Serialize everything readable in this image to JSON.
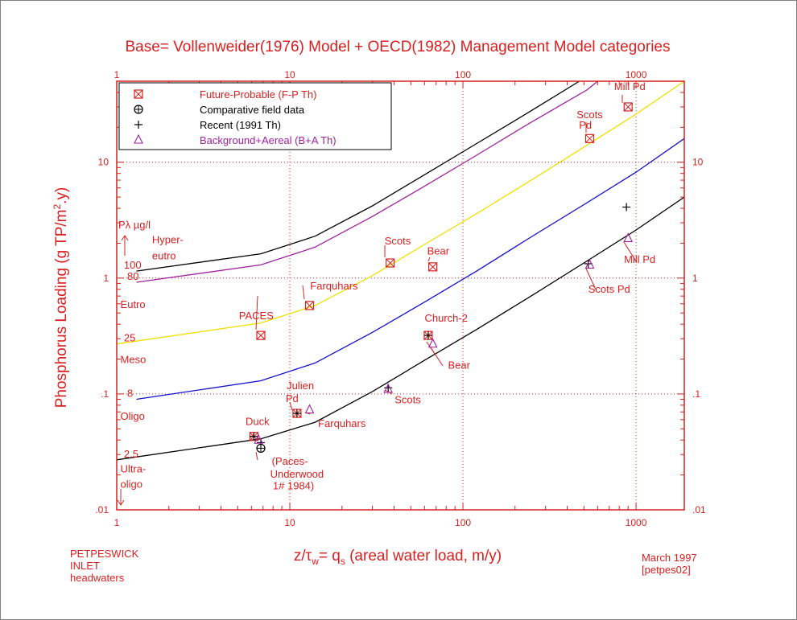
{
  "chart_data": {
    "type": "scatter",
    "title": "Base= Vollenweider(1976) Model + OECD(1982) Management Model categories",
    "xlabel": "z/τw= qs (areal water load, m/y)",
    "xlabel_parts": {
      "a": "z/τ",
      "a_sub": "w",
      "b": "= q",
      "b_sub": "s",
      "c": " (areal water load, m/y)"
    },
    "ylabel": "Phosphorus Loading (g TP/m².y)",
    "ylabel_parts": {
      "a": "Phosphorus Loading (g TP/m",
      "sup": "2",
      "b": ".y)"
    },
    "xscale": "log",
    "yscale": "log",
    "xlim": [
      1,
      1900
    ],
    "ylim": [
      0.01,
      50
    ],
    "grid": true,
    "x_ticks": [
      {
        "v": 1,
        "label": "1"
      },
      {
        "v": 10,
        "label": "10"
      },
      {
        "v": 100,
        "label": "100"
      },
      {
        "v": 1000,
        "label": "1000"
      }
    ],
    "y_ticks": [
      {
        "v": 10,
        "label": "10"
      },
      {
        "v": 1,
        "label": "1"
      },
      {
        "v": 0.1,
        "label": ".1"
      },
      {
        "v": 0.01,
        "label": ".01"
      }
    ],
    "legend_position": "top-left",
    "legend": [
      {
        "marker": "boxed-x",
        "label": "Future-Probable (F-P Th)",
        "color": "#d82020"
      },
      {
        "marker": "circle-plus",
        "label": "Comparative field data",
        "color": "#000000"
      },
      {
        "marker": "plus",
        "label": "Recent (1991 Th)",
        "color": "#000000"
      },
      {
        "marker": "triangle",
        "label": "Background+Aereal (B+A Th)",
        "color": "#a020a0"
      }
    ],
    "curves": [
      {
        "name": "Hyper-eutro 100 µg/l",
        "color": "#000000",
        "x": [
          1.3,
          6.8,
          14,
          30,
          60,
          120,
          240,
          470
        ],
        "y": [
          1.15,
          1.62,
          2.3,
          4.2,
          7.8,
          14.5,
          27,
          50
        ]
      },
      {
        "name": "Hyper-eutro 80 µg/l",
        "color": "#a020a0",
        "x": [
          1.3,
          6.8,
          14,
          30,
          60,
          120,
          240,
          520,
          600
        ],
        "y": [
          0.92,
          1.3,
          1.85,
          3.4,
          6.2,
          11.5,
          21.5,
          42,
          50
        ]
      },
      {
        "name": "Eutro 25 µg/l",
        "color": "#f0e000",
        "x": [
          1,
          6.8,
          14,
          30,
          60,
          120,
          240,
          500,
          1000,
          1900
        ],
        "y": [
          0.27,
          0.41,
          0.58,
          1.05,
          1.95,
          3.6,
          6.8,
          13.5,
          26,
          50
        ]
      },
      {
        "name": "Meso 8 µg/l",
        "color": "#1010d0",
        "x": [
          1.3,
          6.8,
          14,
          30,
          60,
          120,
          240,
          500,
          1000,
          1900
        ],
        "y": [
          0.09,
          0.13,
          0.185,
          0.34,
          0.62,
          1.15,
          2.2,
          4.3,
          8.2,
          16
        ]
      },
      {
        "name": "Oligo 2.5 µg/l",
        "color": "#000000",
        "x": [
          1,
          6.8,
          14,
          30,
          60,
          120,
          240,
          500,
          1000,
          1900
        ],
        "y": [
          0.027,
          0.041,
          0.057,
          0.105,
          0.195,
          0.36,
          0.68,
          1.35,
          2.6,
          5.0
        ]
      }
    ],
    "zone_labels": [
      {
        "text": "Hyper-",
        "x": 1.6,
        "y": 2.0
      },
      {
        "text": "eutro",
        "x": 1.6,
        "y": 1.45
      },
      {
        "text": "Eutro",
        "x": 1.05,
        "y": 0.55
      },
      {
        "text": "Meso",
        "x": 1.05,
        "y": 0.185
      },
      {
        "text": "Oligo",
        "x": 1.05,
        "y": 0.06
      },
      {
        "text": "Ultra-",
        "x": 1.05,
        "y": 0.021
      },
      {
        "text": "oligo",
        "x": 1.05,
        "y": 0.0155
      }
    ],
    "concentration_labels": [
      {
        "text": "100",
        "x": 1.1,
        "y": 1.15
      },
      {
        "text": "80",
        "x": 1.15,
        "y": 0.92
      },
      {
        "text": "25",
        "x": 1.1,
        "y": 0.27
      },
      {
        "text": "8",
        "x": 1.15,
        "y": 0.09
      },
      {
        "text": "2.5",
        "x": 1.1,
        "y": 0.027
      }
    ],
    "p_label": {
      "a": "P",
      "b": "λ µg/l"
    },
    "series": [
      {
        "name": "Future-Probable (F-P Th)",
        "marker": "boxed-x",
        "color": "#d82020",
        "points": [
          {
            "x": 6.8,
            "y": 0.32
          },
          {
            "x": 13,
            "y": 0.58
          },
          {
            "x": 38,
            "y": 1.35
          },
          {
            "x": 67,
            "y": 1.25
          },
          {
            "x": 540,
            "y": 16
          },
          {
            "x": 900,
            "y": 30
          },
          {
            "x": 63,
            "y": 0.32
          },
          {
            "x": 11,
            "y": 0.068
          },
          {
            "x": 6.2,
            "y": 0.043
          }
        ]
      },
      {
        "name": "Comparative field data",
        "marker": "circle-plus",
        "color": "#000000",
        "points": [
          {
            "x": 6.8,
            "y": 0.034
          }
        ]
      },
      {
        "name": "Recent (1991 Th)",
        "marker": "plus",
        "color": "#000000",
        "points": [
          {
            "x": 880,
            "y": 4.1
          },
          {
            "x": 530,
            "y": 1.33
          },
          {
            "x": 63,
            "y": 0.32
          },
          {
            "x": 37,
            "y": 0.113
          },
          {
            "x": 11,
            "y": 0.068
          },
          {
            "x": 6.2,
            "y": 0.043
          },
          {
            "x": 6.8,
            "y": 0.038
          }
        ]
      },
      {
        "name": "Background+Aereal (B+A Th)",
        "marker": "triangle",
        "color": "#a020a0",
        "points": [
          {
            "x": 900,
            "y": 2.2
          },
          {
            "x": 540,
            "y": 1.3
          },
          {
            "x": 67,
            "y": 0.27
          },
          {
            "x": 37,
            "y": 0.11
          },
          {
            "x": 13,
            "y": 0.073
          },
          {
            "x": 6.6,
            "y": 0.04
          }
        ]
      }
    ],
    "annotations": [
      {
        "text": "PACES",
        "x": 6.4,
        "y": 0.44
      },
      {
        "text": "Farquhars",
        "x": 18,
        "y": 0.8
      },
      {
        "text": "Scots",
        "x": 42,
        "y": 1.95
      },
      {
        "text": "Bear",
        "x": 72,
        "y": 1.6
      },
      {
        "text": "Scots",
        "x": 540,
        "y": 24
      },
      {
        "text": "Pd",
        "x": 510,
        "y": 19.5
      },
      {
        "text": "Mill Pd",
        "x": 920,
        "y": 42
      },
      {
        "text": "Church-2",
        "x": 80,
        "y": 0.42
      },
      {
        "text": "Bear",
        "x": 95,
        "y": 0.165
      },
      {
        "text": "Scots",
        "x": 48,
        "y": 0.083
      },
      {
        "text": "Julien",
        "x": 11.5,
        "y": 0.11
      },
      {
        "text": "Pd",
        "x": 10.3,
        "y": 0.085
      },
      {
        "text": "Farquhars",
        "x": 20,
        "y": 0.052
      },
      {
        "text": "Duck",
        "x": 6.5,
        "y": 0.054
      },
      {
        "text": "(Paces-",
        "x": 10,
        "y": 0.0245
      },
      {
        "text": "Underwood",
        "x": 11,
        "y": 0.019
      },
      {
        "text": "1# 1984)",
        "x": 10.5,
        "y": 0.015
      },
      {
        "text": "Scots Pd",
        "x": 700,
        "y": 0.75
      },
      {
        "text": "Mill Pd",
        "x": 1050,
        "y": 1.35
      }
    ],
    "footer_left": [
      "PETPESWICK",
      "INLET",
      "headwaters"
    ],
    "footer_right": [
      "March 1997",
      "[petpes02]"
    ]
  }
}
